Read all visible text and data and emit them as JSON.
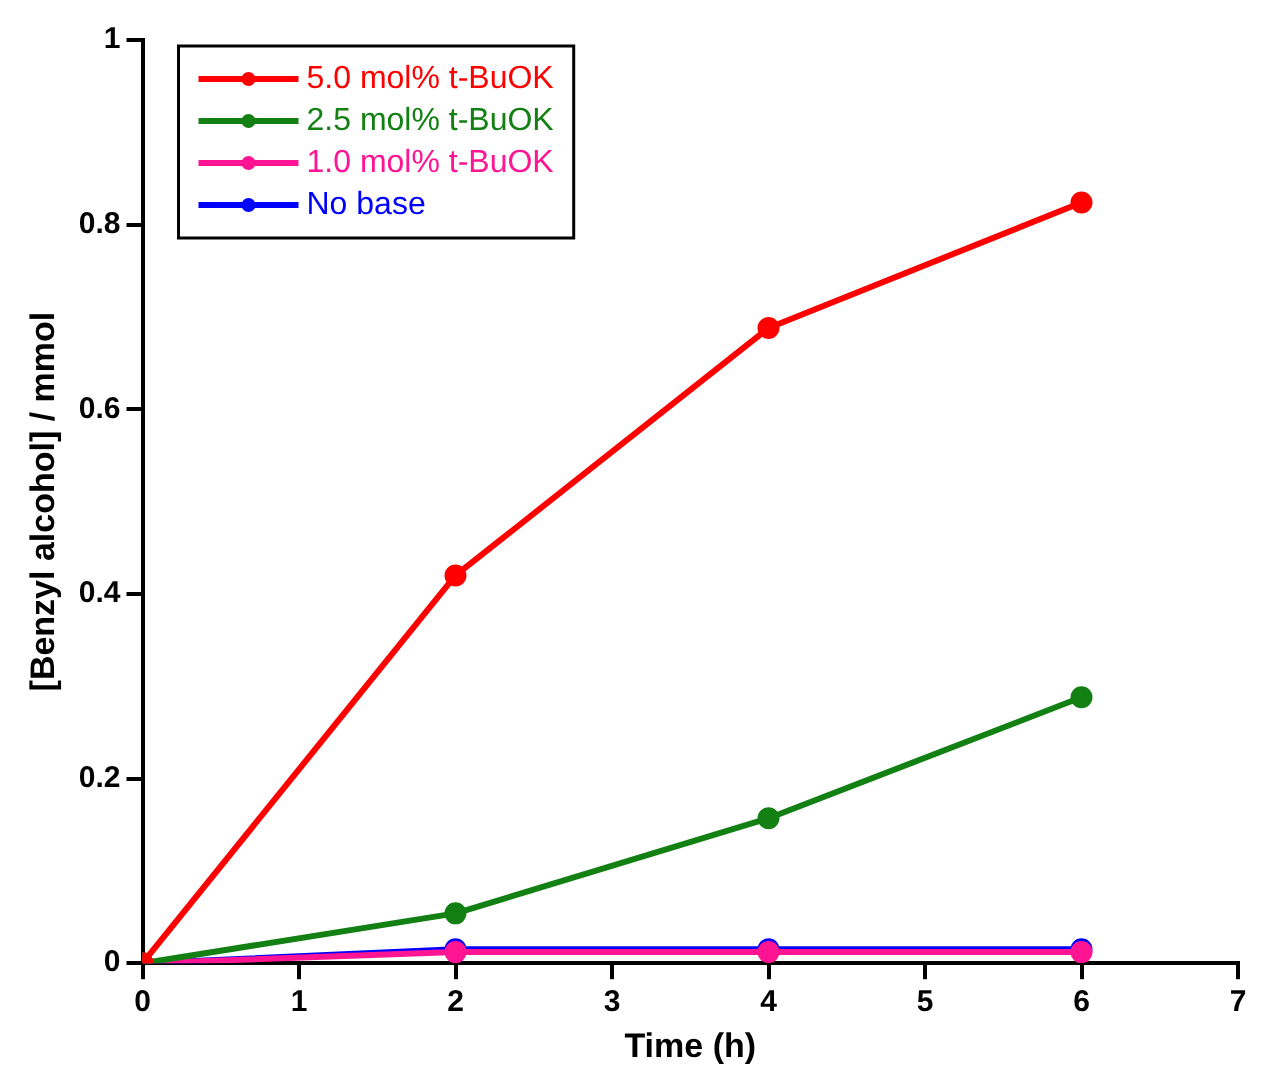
{
  "chart_data": {
    "type": "line",
    "xlabel": "Time (h)",
    "ylabel": "[Benzyl alcohol] / mmol",
    "x": [
      0,
      2,
      4,
      6
    ],
    "xlim": [
      0,
      7
    ],
    "xticks": [
      0,
      1,
      2,
      3,
      4,
      5,
      6,
      7
    ],
    "ylim": [
      0,
      1
    ],
    "yticks": [
      0,
      0.2,
      0.4,
      0.6,
      0.8,
      1
    ],
    "series": [
      {
        "name": "5.0 mol% t-BuOK",
        "color": "#ff0000",
        "values": [
          0,
          0.42,
          0.688,
          0.824
        ]
      },
      {
        "name": "2.5 mol% t-BuOK",
        "color": "#138013",
        "values": [
          0,
          0.054,
          0.157,
          0.288
        ]
      },
      {
        "name": "1.0 mol% t-BuOK",
        "color": "#ff1493",
        "values": [
          0,
          0.012,
          0.012,
          0.012
        ]
      },
      {
        "name": "No base",
        "color": "#0000ff",
        "values": [
          0,
          0.015,
          0.015,
          0.015
        ]
      }
    ],
    "grid": false,
    "legend": "top left",
    "marker": "circle",
    "line_style": "solid"
  }
}
